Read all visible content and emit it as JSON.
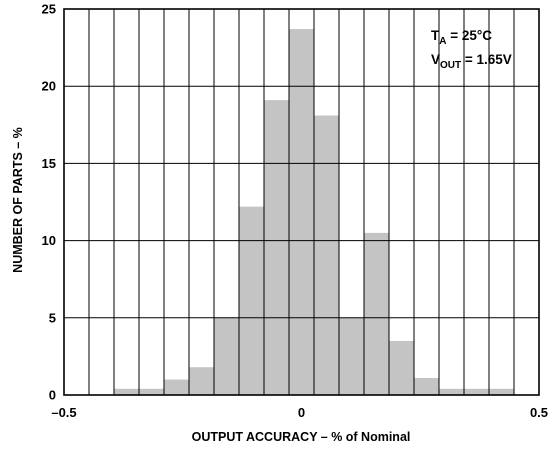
{
  "chart_data": {
    "type": "bar",
    "title": "",
    "xlabel": "OUTPUT ACCURACY – % of Nominal",
    "ylabel": "NUMBER OF PARTS – %",
    "xlim": [
      -0.5,
      0.5
    ],
    "ylim": [
      0,
      25
    ],
    "x_ticks": [
      -0.5,
      0,
      0.5
    ],
    "x_tick_labels": [
      "–0.5",
      "0",
      "0.5"
    ],
    "y_ticks": [
      0,
      5,
      10,
      15,
      20,
      25
    ],
    "y_tick_labels": [
      "0",
      "5",
      "10",
      "15",
      "20",
      "25"
    ],
    "grid": true,
    "grid_x_step": 0.0526,
    "grid_y_step": 5,
    "bar_color": "#c4c4c4",
    "bins": [
      {
        "x0": -0.395,
        "x1": -0.342,
        "value": 0.4
      },
      {
        "x0": -0.342,
        "x1": -0.289,
        "value": 0.4
      },
      {
        "x0": -0.289,
        "x1": -0.237,
        "value": 1.0
      },
      {
        "x0": -0.237,
        "x1": -0.184,
        "value": 1.8
      },
      {
        "x0": -0.184,
        "x1": -0.132,
        "value": 5.0
      },
      {
        "x0": -0.132,
        "x1": -0.079,
        "value": 12.2
      },
      {
        "x0": -0.079,
        "x1": -0.026,
        "value": 19.1
      },
      {
        "x0": -0.026,
        "x1": 0.026,
        "value": 23.7
      },
      {
        "x0": 0.026,
        "x1": 0.079,
        "value": 18.1
      },
      {
        "x0": 0.079,
        "x1": 0.132,
        "value": 5.0
      },
      {
        "x0": 0.132,
        "x1": 0.184,
        "value": 10.5
      },
      {
        "x0": 0.184,
        "x1": 0.237,
        "value": 3.5
      },
      {
        "x0": 0.237,
        "x1": 0.289,
        "value": 1.1
      },
      {
        "x0": 0.289,
        "x1": 0.342,
        "value": 0.4
      },
      {
        "x0": 0.342,
        "x1": 0.395,
        "value": 0.4
      },
      {
        "x0": 0.395,
        "x1": 0.447,
        "value": 0.4
      }
    ],
    "annotations": {
      "line1": {
        "base": "T",
        "sub": "A",
        "rest": " = 25°C"
      },
      "line2": {
        "base": "V",
        "sub": "OUT",
        "rest": " = 1.65V"
      }
    }
  }
}
